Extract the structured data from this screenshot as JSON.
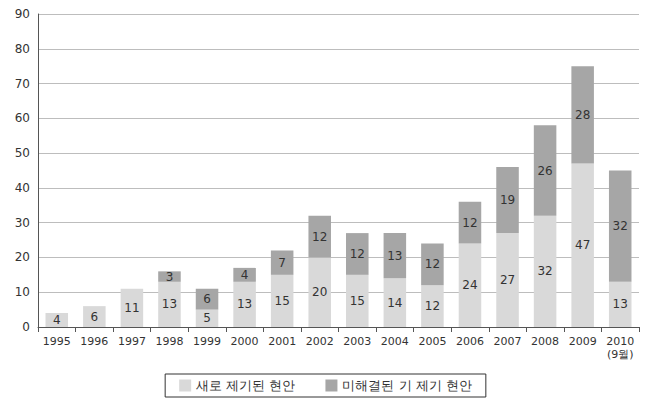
{
  "chart_data": {
    "type": "bar",
    "stacked": true,
    "categories": [
      "1995",
      "1996",
      "1997",
      "1998",
      "1999",
      "2000",
      "2001",
      "2002",
      "2003",
      "2004",
      "2005",
      "2006",
      "2007",
      "2008",
      "2009",
      "2010\n(9월)"
    ],
    "series": [
      {
        "name": "새로 제기된 현안",
        "color": "#d9d9d9",
        "values": [
          4,
          6,
          11,
          13,
          5,
          13,
          15,
          20,
          15,
          14,
          12,
          24,
          27,
          32,
          47,
          13
        ]
      },
      {
        "name": "미해결된 기 제기 현안",
        "color": "#a6a6a6",
        "values": [
          null,
          null,
          null,
          3,
          6,
          4,
          7,
          12,
          12,
          13,
          12,
          12,
          19,
          26,
          28,
          32
        ]
      }
    ],
    "totals": [
      4,
      6,
      11,
      16,
      11,
      17,
      22,
      32,
      27,
      27,
      24,
      36,
      46,
      58,
      75,
      45
    ],
    "data_labels": true,
    "ylim": [
      0,
      90
    ],
    "yticks": [
      0,
      10,
      20,
      30,
      40,
      50,
      60,
      70,
      80,
      90
    ],
    "grid": true,
    "legend": "bottom"
  }
}
